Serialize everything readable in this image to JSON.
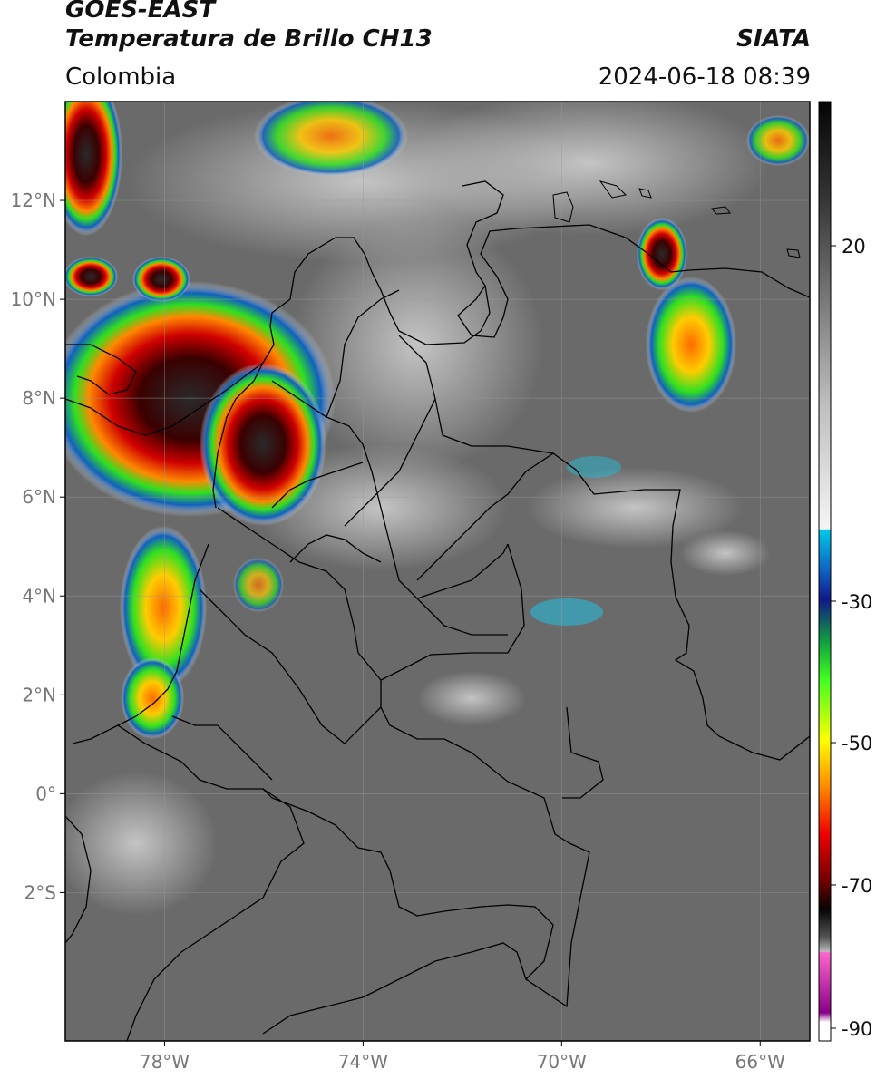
{
  "header": {
    "line1": "GOES-EAST",
    "line2": "Temperatura de Brillo CH13",
    "brand": "SIATA",
    "region": "Colombia",
    "datetime": "2024-06-18 08:39"
  },
  "map": {
    "lon_range": [
      -80,
      -65
    ],
    "lat_range": [
      -5,
      14
    ],
    "lon_ticks": [
      {
        "value": -78,
        "label": "78°W"
      },
      {
        "value": -74,
        "label": "74°W"
      },
      {
        "value": -70,
        "label": "70°W"
      },
      {
        "value": -66,
        "label": "66°W"
      }
    ],
    "lat_ticks": [
      {
        "value": 12,
        "label": "12°N"
      },
      {
        "value": 10,
        "label": "10°N"
      },
      {
        "value": 8,
        "label": "8°N"
      },
      {
        "value": 6,
        "label": "6°N"
      },
      {
        "value": 4,
        "label": "4°N"
      },
      {
        "value": 2,
        "label": "2°N"
      },
      {
        "value": 0,
        "label": "0°"
      },
      {
        "value": -2,
        "label": "2°S"
      }
    ],
    "grid": true,
    "background_color": "#6a6a6a"
  },
  "colorbar": {
    "ticks": [
      {
        "value": 20,
        "label": "20"
      },
      {
        "value": -30,
        "label": "-30"
      },
      {
        "value": -50,
        "label": "-50"
      },
      {
        "value": -70,
        "label": "-70"
      },
      {
        "value": -90,
        "label": "-90"
      }
    ]
  }
}
